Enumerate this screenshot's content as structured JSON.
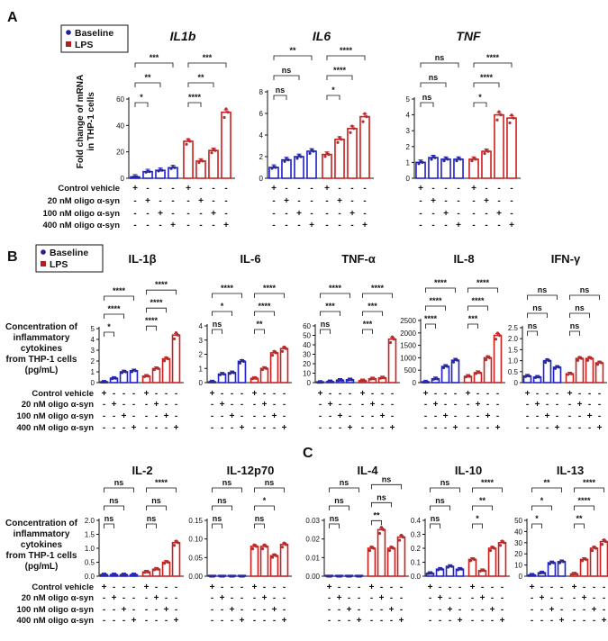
{
  "panel_labels": [
    "A",
    "B",
    "C"
  ],
  "legend": {
    "baseline_label": "Baseline",
    "lps_label": "LPS",
    "baseline_color": "#1f1fcc",
    "lps_color": "#cc1f1f",
    "baseline_fill": "#ffffff",
    "lps_fill": "#ffffff",
    "point_baseline": "#2b2b8f",
    "point_lps": "#b03030"
  },
  "treatments": [
    "Control vehicle",
    "20 nM oligo α-syn",
    "100 nM oligo α-syn",
    "400 nM oligo α-syn"
  ],
  "treatment_signs": [
    [
      "+",
      "-",
      "-",
      "-",
      "+",
      "-",
      "-",
      "-"
    ],
    [
      "-",
      "+",
      "-",
      "-",
      "-",
      "+",
      "-",
      "-"
    ],
    [
      "-",
      "-",
      "+",
      "-",
      "-",
      "-",
      "+",
      "-"
    ],
    [
      "-",
      "-",
      "-",
      "+",
      "-",
      "-",
      "-",
      "+"
    ]
  ],
  "ylabels": {
    "A": [
      "Fold change of mRNA",
      "in THP-1 cells"
    ],
    "B": [
      "Concentration of",
      "inflammatory",
      "cytokines",
      "from THP-1 cells",
      "(pg/mL)"
    ],
    "B2": [
      "Concentration of",
      "inflammatory",
      "cytokines",
      "from THP-1 cells",
      "(pg/mL)"
    ]
  },
  "chart_data": [
    {
      "type": "bar",
      "title": "IL1b",
      "ylim": [
        0,
        60
      ],
      "ticks": [
        "0",
        "20",
        "40",
        "60"
      ],
      "series": [
        {
          "name": "Baseline",
          "values": [
            1,
            5,
            6,
            8
          ]
        },
        {
          "name": "LPS",
          "values": [
            28,
            13,
            21,
            50
          ]
        }
      ],
      "sig": [
        "*",
        "**",
        "***",
        "****",
        "**",
        "***"
      ]
    },
    {
      "type": "bar",
      "title": "IL6",
      "ylim": [
        0,
        8
      ],
      "ticks": [
        "0",
        "2",
        "4",
        "6",
        "8"
      ],
      "series": [
        {
          "name": "Baseline",
          "values": [
            1,
            1.7,
            2,
            2.5
          ]
        },
        {
          "name": "LPS",
          "values": [
            2.2,
            3.6,
            4.6,
            5.7
          ]
        }
      ],
      "sig": [
        "ns",
        "ns",
        "**",
        "*",
        "****",
        "****"
      ]
    },
    {
      "type": "bar",
      "title": "TNF",
      "ylim": [
        0,
        5
      ],
      "ticks": [
        "0",
        "1",
        "2",
        "3",
        "4",
        "5"
      ],
      "series": [
        {
          "name": "Baseline",
          "values": [
            1,
            1.3,
            1.2,
            1.2
          ]
        },
        {
          "name": "LPS",
          "values": [
            1.2,
            1.7,
            4,
            3.8
          ]
        }
      ],
      "sig": [
        "ns",
        "ns",
        "ns",
        "*",
        "****",
        "****"
      ]
    },
    {
      "type": "bar",
      "title": "IL-1β",
      "ylim": [
        0,
        5
      ],
      "ticks": [
        "0",
        "1",
        "2",
        "3",
        "4",
        "5"
      ],
      "series": [
        {
          "name": "Baseline",
          "values": [
            0.05,
            0.4,
            1.0,
            1.1
          ]
        },
        {
          "name": "LPS",
          "values": [
            0.6,
            1.3,
            2.2,
            4.4
          ]
        }
      ],
      "sig": [
        "*",
        "****",
        "****",
        "****",
        "****",
        "****"
      ]
    },
    {
      "type": "bar",
      "title": "IL-6",
      "ylim": [
        0,
        4
      ],
      "ticks": [
        "0",
        "1",
        "2",
        "3",
        "4"
      ],
      "series": [
        {
          "name": "Baseline",
          "values": [
            0.05,
            0.6,
            0.7,
            1.5
          ]
        },
        {
          "name": "LPS",
          "values": [
            0.3,
            1.0,
            2.1,
            2.4
          ]
        }
      ],
      "sig": [
        "ns",
        "*",
        "****",
        "**",
        "****",
        "****"
      ]
    },
    {
      "type": "bar",
      "title": "TNF-α",
      "ylim": [
        0,
        60
      ],
      "ticks": [
        "0",
        "10",
        "20",
        "30",
        "40",
        "50",
        "60"
      ],
      "series": [
        {
          "name": "Baseline",
          "values": [
            0.3,
            1,
            2.5,
            3
          ]
        },
        {
          "name": "LPS",
          "values": [
            2,
            4,
            5,
            46
          ]
        }
      ],
      "sig": [
        "ns",
        "***",
        "****",
        "***",
        "***",
        "****"
      ]
    },
    {
      "type": "bar",
      "title": "IL-8",
      "ylim": [
        0,
        2500
      ],
      "ticks": [
        "0",
        "500",
        "1000",
        "1500",
        "2000",
        "2500"
      ],
      "series": [
        {
          "name": "Baseline",
          "values": [
            20,
            150,
            650,
            900
          ]
        },
        {
          "name": "LPS",
          "values": [
            250,
            400,
            1000,
            1900
          ]
        }
      ],
      "sig": [
        "****",
        "****",
        "****",
        "***",
        "****",
        "****"
      ]
    },
    {
      "type": "bar",
      "title": "IFN-γ",
      "ylim": [
        0,
        2.5
      ],
      "ticks": [
        "0",
        "0.5",
        "1.0",
        "1.5",
        "2.0",
        "2.5"
      ],
      "series": [
        {
          "name": "Baseline",
          "values": [
            0.3,
            0.25,
            1.0,
            0.7
          ]
        },
        {
          "name": "LPS",
          "values": [
            0.4,
            1.1,
            1.1,
            0.9
          ]
        }
      ],
      "sig": [
        "ns",
        "ns",
        "ns",
        "ns",
        "ns",
        "ns"
      ]
    },
    {
      "type": "bar",
      "title": "IL-2",
      "ylim": [
        0,
        2.0
      ],
      "ticks": [
        "0.0",
        "0.5",
        "1.0",
        "1.5",
        "2.0"
      ],
      "series": [
        {
          "name": "Baseline",
          "values": [
            0.05,
            0.05,
            0.05,
            0.05
          ]
        },
        {
          "name": "LPS",
          "values": [
            0.15,
            0.25,
            0.5,
            1.2
          ]
        }
      ],
      "sig": [
        "ns",
        "ns",
        "ns",
        "ns",
        "ns",
        "****"
      ]
    },
    {
      "type": "bar",
      "title": "IL-12p70",
      "ylim": [
        0,
        0.15
      ],
      "ticks": [
        "0.00",
        "0.05",
        "0.10",
        "0.15"
      ],
      "series": [
        {
          "name": "Baseline",
          "values": [
            0,
            0,
            0,
            0
          ]
        },
        {
          "name": "LPS",
          "values": [
            0.08,
            0.08,
            0.055,
            0.085
          ]
        }
      ],
      "sig": [
        "ns",
        "ns",
        "ns",
        "ns",
        "*",
        "ns"
      ]
    },
    {
      "type": "bar",
      "title": "IL-4",
      "ylim": [
        0,
        0.03
      ],
      "ticks": [
        "0.00",
        "0.01",
        "0.02",
        "0.03"
      ],
      "series": [
        {
          "name": "Baseline",
          "values": [
            0,
            0,
            0,
            0
          ]
        },
        {
          "name": "LPS",
          "values": [
            0.015,
            0.025,
            0.015,
            0.021
          ]
        }
      ],
      "sig": [
        "ns",
        "ns",
        "ns",
        "**",
        "ns",
        "ns"
      ]
    },
    {
      "type": "bar",
      "title": "IL-10",
      "ylim": [
        0,
        0.4
      ],
      "ticks": [
        "0.0",
        "0.1",
        "0.2",
        "0.3",
        "0.4"
      ],
      "series": [
        {
          "name": "Baseline",
          "values": [
            0.02,
            0.05,
            0.07,
            0.05
          ]
        },
        {
          "name": "LPS",
          "values": [
            0.12,
            0.04,
            0.2,
            0.24
          ]
        }
      ],
      "sig": [
        "ns",
        "ns",
        "ns",
        "*",
        "**",
        "****"
      ]
    },
    {
      "type": "bar",
      "title": "IL-13",
      "ylim": [
        0,
        50
      ],
      "ticks": [
        "0",
        "10",
        "20",
        "30",
        "40",
        "50"
      ],
      "series": [
        {
          "name": "Baseline",
          "values": [
            1,
            3,
            12,
            13
          ]
        },
        {
          "name": "LPS",
          "values": [
            2,
            15,
            25,
            31
          ]
        }
      ],
      "sig": [
        "*",
        "*",
        "**",
        "**",
        "****",
        "****"
      ]
    }
  ]
}
